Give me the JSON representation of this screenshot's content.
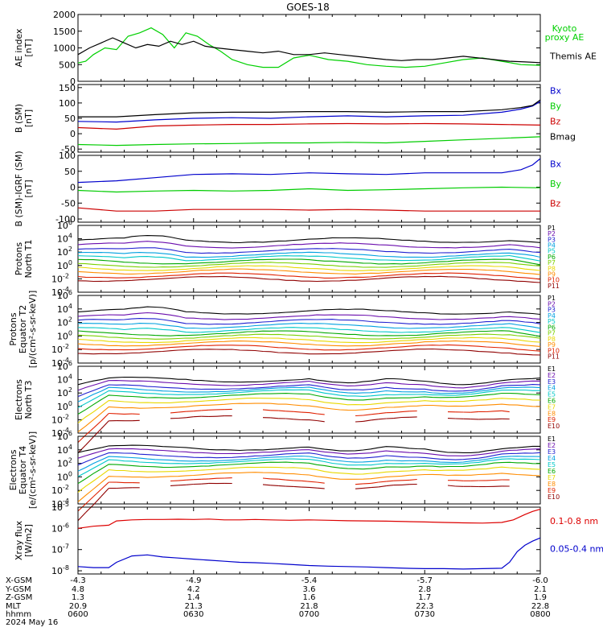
{
  "title": "GOES-18",
  "time_axis": {
    "ticks": [
      "0600",
      "0630",
      "0700",
      "0730",
      "0800"
    ],
    "rows": [
      {
        "label": "X-GSM",
        "values": [
          "-4.3",
          "-4.9",
          "-5.4",
          "-5.7",
          "-6.0"
        ]
      },
      {
        "label": "Y-GSM",
        "values": [
          "4.8",
          "4.2",
          "3.6",
          "2.8",
          "2.1"
        ]
      },
      {
        "label": "Z-GSM",
        "values": [
          "1.3",
          "1.4",
          "1.6",
          "1.7",
          "1.9"
        ]
      },
      {
        "label": "MLT",
        "values": [
          "20.9",
          "21.3",
          "21.8",
          "22.3",
          "22.8"
        ]
      },
      {
        "label": "hhmm",
        "values": [
          "0600",
          "0630",
          "0700",
          "0730",
          "0800"
        ]
      }
    ],
    "date": "2024 May 16"
  },
  "chart_data": [
    {
      "type": "line",
      "name": "ae",
      "ylabel": [
        "AE index",
        "[nT]"
      ],
      "yticks": [
        "2000",
        "1500",
        "1000",
        "500",
        "0"
      ],
      "ylim": [
        0,
        2000
      ],
      "series": [
        {
          "name": "Kyoto proxy AE",
          "legend": [
            "Kyoto",
            "proxy AE"
          ],
          "color": "#00d000",
          "x": [
            0,
            2,
            4,
            7,
            10,
            13,
            16,
            19,
            22,
            25,
            28,
            31,
            34,
            37,
            40,
            44,
            48,
            52,
            56,
            60,
            65,
            70,
            75,
            80,
            85,
            90,
            95,
            100,
            105,
            110,
            115,
            120
          ],
          "y": [
            550,
            600,
            800,
            1000,
            950,
            1350,
            1450,
            1600,
            1400,
            1000,
            1450,
            1350,
            1100,
            900,
            650,
            500,
            420,
            420,
            700,
            780,
            650,
            600,
            500,
            450,
            420,
            450,
            550,
            650,
            700,
            600,
            500,
            480
          ]
        },
        {
          "name": "Themis AE",
          "legend": [
            "Themis AE"
          ],
          "color": "#000000",
          "x": [
            0,
            3,
            6,
            9,
            12,
            15,
            18,
            21,
            24,
            27,
            30,
            33,
            36,
            40,
            44,
            48,
            52,
            56,
            60,
            64,
            68,
            72,
            76,
            80,
            84,
            88,
            92,
            96,
            100,
            104,
            108,
            112,
            116,
            120
          ],
          "y": [
            800,
            1000,
            1150,
            1300,
            1150,
            1000,
            1100,
            1050,
            1200,
            1100,
            1200,
            1050,
            1000,
            950,
            900,
            850,
            900,
            800,
            800,
            850,
            800,
            750,
            700,
            650,
            620,
            650,
            650,
            700,
            750,
            700,
            650,
            600,
            580,
            560
          ]
        }
      ]
    },
    {
      "type": "line",
      "name": "bsm",
      "ylabel": [
        "B (SM)",
        "[nT]"
      ],
      "yticks": [
        "150",
        "100",
        "50",
        "0",
        "-50"
      ],
      "ylim": [
        -60,
        160
      ],
      "series": [
        {
          "name": "Bx",
          "legend": [
            "Bx"
          ],
          "color": "#0000cc",
          "x": [
            0,
            10,
            20,
            30,
            40,
            50,
            60,
            70,
            80,
            90,
            100,
            110,
            115,
            118,
            120
          ],
          "y": [
            40,
            38,
            45,
            50,
            52,
            50,
            55,
            58,
            55,
            58,
            60,
            70,
            80,
            90,
            105
          ]
        },
        {
          "name": "By",
          "legend": [
            "By"
          ],
          "color": "#00cc00",
          "x": [
            0,
            10,
            20,
            30,
            40,
            50,
            60,
            70,
            80,
            90,
            100,
            110,
            120
          ],
          "y": [
            -35,
            -38,
            -35,
            -33,
            -32,
            -30,
            -30,
            -28,
            -30,
            -25,
            -20,
            -15,
            -10
          ]
        },
        {
          "name": "Bz",
          "legend": [
            "Bz"
          ],
          "color": "#cc0000",
          "x": [
            0,
            10,
            20,
            30,
            40,
            50,
            60,
            70,
            80,
            90,
            100,
            110,
            120
          ],
          "y": [
            20,
            15,
            25,
            28,
            30,
            30,
            32,
            33,
            32,
            33,
            32,
            30,
            28
          ]
        },
        {
          "name": "Bmag",
          "legend": [
            "Bmag"
          ],
          "color": "#000000",
          "x": [
            0,
            10,
            20,
            30,
            40,
            50,
            60,
            70,
            80,
            90,
            100,
            110,
            115,
            118,
            120
          ],
          "y": [
            55,
            55,
            62,
            68,
            70,
            70,
            72,
            72,
            70,
            72,
            72,
            78,
            85,
            92,
            110
          ]
        }
      ]
    },
    {
      "type": "line",
      "name": "bsm-igrf",
      "ylabel": [
        "B (SM)-IGRF (SM)",
        "[nT]"
      ],
      "yticks": [
        "100",
        "50",
        "0",
        "-50",
        "-100"
      ],
      "ylim": [
        -110,
        100
      ],
      "series": [
        {
          "name": "Bx",
          "legend": [
            "Bx"
          ],
          "color": "#0000cc",
          "x": [
            0,
            10,
            20,
            30,
            40,
            50,
            60,
            70,
            80,
            90,
            100,
            110,
            115,
            118,
            120
          ],
          "y": [
            15,
            20,
            30,
            40,
            42,
            40,
            45,
            42,
            40,
            45,
            45,
            45,
            55,
            70,
            90
          ]
        },
        {
          "name": "By",
          "legend": [
            "By"
          ],
          "color": "#00cc00",
          "x": [
            0,
            10,
            20,
            30,
            40,
            50,
            60,
            70,
            80,
            90,
            100,
            110,
            120
          ],
          "y": [
            -10,
            -15,
            -12,
            -10,
            -12,
            -10,
            -5,
            -10,
            -8,
            -5,
            -2,
            0,
            -2
          ]
        },
        {
          "name": "Bz",
          "legend": [
            "Bz"
          ],
          "color": "#cc0000",
          "x": [
            0,
            10,
            20,
            30,
            40,
            50,
            60,
            70,
            80,
            90,
            100,
            110,
            120
          ],
          "y": [
            -65,
            -75,
            -75,
            -70,
            -70,
            -70,
            -72,
            -70,
            -72,
            -75,
            -75,
            -75,
            -75
          ]
        }
      ]
    },
    {
      "type": "line",
      "name": "protons-north",
      "log": true,
      "ylabel": [
        "Protons",
        "North T1"
      ],
      "yticks": [
        "10^6",
        "10^4",
        "10^2",
        "10^0",
        "10^-2",
        "10^-4"
      ],
      "ylim": [
        -4,
        6
      ],
      "channels": [
        "P1",
        "P2",
        "P3",
        "P4",
        "P5",
        "P6",
        "P7",
        "P8",
        "P9",
        "P10",
        "P11"
      ],
      "channel_colors": [
        "#000000",
        "#6a0dad",
        "#2020d0",
        "#00a0e0",
        "#00c8c8",
        "#00a800",
        "#7ad000",
        "#e8d800",
        "#ff8c00",
        "#e02000",
        "#900000"
      ],
      "channel_values": [
        3.8,
        3.0,
        2.2,
        1.6,
        1.1,
        0.6,
        0.1,
        -0.4,
        -0.9,
        -1.5,
        -2.0
      ]
    },
    {
      "type": "line",
      "name": "protons-equator",
      "log": true,
      "ylabel": [
        "Protons",
        "Equator T2",
        "[p/(cm²-s-sr-keV)]"
      ],
      "yticks": [
        "10^6",
        "10^4",
        "10^2",
        "10^0",
        "10^-2",
        "10^-4"
      ],
      "ylim": [
        -4,
        6
      ],
      "channels": [
        "P1",
        "P2",
        "P3",
        "P4",
        "P5",
        "P6",
        "P7",
        "P8",
        "P9",
        "P10",
        "P11"
      ],
      "channel_colors": [
        "#000000",
        "#6a0dad",
        "#2020d0",
        "#00a0e0",
        "#00c8c8",
        "#00a800",
        "#7ad000",
        "#e8d800",
        "#ff8c00",
        "#e02000",
        "#900000"
      ],
      "channel_values": [
        3.6,
        2.8,
        2.1,
        1.5,
        0.9,
        0.4,
        -0.1,
        -0.6,
        -1.1,
        -1.7,
        -2.3
      ]
    },
    {
      "type": "line",
      "name": "electrons-north",
      "log": true,
      "ylabel": [
        "Electrons",
        "North T3"
      ],
      "yticks": [
        "10^6",
        "10^4",
        "10^2",
        "10^0",
        "10^-2",
        "10^-4"
      ],
      "ylim": [
        -4,
        6
      ],
      "channels": [
        "E1",
        "E2",
        "E3",
        "E4",
        "E5",
        "E6",
        "E7",
        "E8",
        "E9",
        "E10"
      ],
      "channel_colors": [
        "#000000",
        "#6a0dad",
        "#2020d0",
        "#00a0e0",
        "#00c8c8",
        "#00a800",
        "#e8d800",
        "#ff8c00",
        "#e02000",
        "#900000"
      ],
      "channel_values": [
        4.0,
        3.5,
        2.9,
        2.5,
        2.1,
        1.6,
        0.9,
        0.1,
        -0.8,
        -1.8
      ]
    },
    {
      "type": "line",
      "name": "electrons-equator",
      "log": true,
      "ylabel": [
        "Electrons",
        "Equator T4",
        "[e/(cm²-s-sr-keV)]"
      ],
      "yticks": [
        "10^6",
        "10^4",
        "10^2",
        "10^0",
        "10^-2",
        "10^-4"
      ],
      "ylim": [
        -4,
        6
      ],
      "channels": [
        "E1",
        "E2",
        "E3",
        "E4",
        "E5",
        "E6",
        "E7",
        "E8",
        "E9",
        "E10"
      ],
      "channel_colors": [
        "#000000",
        "#6a0dad",
        "#2020d0",
        "#00a0e0",
        "#00c8c8",
        "#00a800",
        "#e8d800",
        "#ff8c00",
        "#e02000",
        "#900000"
      ],
      "channel_values": [
        4.3,
        3.8,
        3.2,
        2.7,
        2.3,
        1.8,
        1.1,
        0.3,
        -0.5,
        -1.3
      ]
    },
    {
      "type": "line",
      "name": "xray",
      "log": true,
      "ylabel": [
        "Xray flux",
        "[W/m2]"
      ],
      "yticks": [
        "10^-5",
        "10^-6",
        "10^-7",
        "10^-8"
      ],
      "ylim": [
        -8.15,
        -5
      ],
      "series": [
        {
          "name": "0.1-0.8 nm",
          "legend": [
            "0.1-0.8 nm"
          ],
          "color": "#dd0000",
          "x": [
            0,
            4,
            8,
            10,
            14,
            18,
            22,
            26,
            30,
            34,
            38,
            42,
            46,
            50,
            55,
            60,
            65,
            70,
            75,
            80,
            85,
            90,
            95,
            100,
            105,
            110,
            113,
            116,
            118,
            120
          ],
          "y": [
            -6.0,
            -5.9,
            -5.85,
            -5.65,
            -5.6,
            -5.58,
            -5.58,
            -5.57,
            -5.58,
            -5.56,
            -5.6,
            -5.6,
            -5.58,
            -5.6,
            -5.62,
            -5.6,
            -5.62,
            -5.64,
            -5.65,
            -5.66,
            -5.68,
            -5.7,
            -5.72,
            -5.74,
            -5.75,
            -5.72,
            -5.6,
            -5.35,
            -5.2,
            -5.1
          ]
        },
        {
          "name": "0.05-0.4 nm",
          "legend": [
            "0.05-0.4 nm"
          ],
          "color": "#0000cc",
          "x": [
            0,
            4,
            8,
            10,
            14,
            18,
            22,
            26,
            30,
            34,
            38,
            42,
            46,
            50,
            55,
            60,
            65,
            70,
            75,
            80,
            85,
            90,
            95,
            100,
            105,
            110,
            112,
            114,
            116,
            118,
            120
          ],
          "y": [
            -7.8,
            -7.85,
            -7.85,
            -7.6,
            -7.3,
            -7.25,
            -7.35,
            -7.4,
            -7.45,
            -7.5,
            -7.55,
            -7.6,
            -7.62,
            -7.65,
            -7.7,
            -7.75,
            -7.78,
            -7.8,
            -7.82,
            -7.85,
            -7.88,
            -7.9,
            -7.9,
            -7.92,
            -7.9,
            -7.88,
            -7.6,
            -7.1,
            -6.8,
            -6.6,
            -6.45
          ]
        }
      ]
    }
  ]
}
